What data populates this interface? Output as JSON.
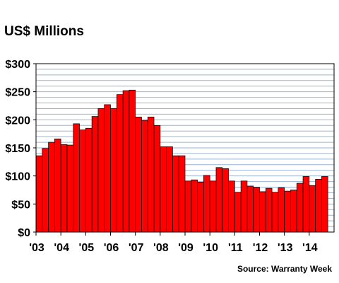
{
  "chart_data": {
    "type": "bar",
    "title": "US$ Millions",
    "source": "Source: Warranty Week",
    "ylim": [
      0,
      300
    ],
    "y_ticks": [
      {
        "value": 0,
        "label": "$0"
      },
      {
        "value": 50,
        "label": "$50"
      },
      {
        "value": 100,
        "label": "$100"
      },
      {
        "value": 150,
        "label": "$150"
      },
      {
        "value": 200,
        "label": "$200"
      },
      {
        "value": 250,
        "label": "$250"
      },
      {
        "value": 300,
        "label": "$300"
      }
    ],
    "y_gridline_step": 10,
    "grid": true,
    "x_tick_labels": [
      "'03",
      "'04",
      "'05",
      "'06",
      "'07",
      "'08",
      "'09",
      "'10",
      "'11",
      "'12",
      "'13",
      "'14"
    ],
    "periods_per_label": 4,
    "bar_color": "#ff0000",
    "grid_color": "#99b4d1",
    "values": [
      136,
      149,
      160,
      166,
      156,
      155,
      193,
      182,
      185,
      206,
      220,
      227,
      220,
      245,
      252,
      253,
      205,
      199,
      205,
      190,
      152,
      152,
      136,
      136,
      91,
      93,
      89,
      101,
      91,
      115,
      113,
      91,
      71,
      91,
      82,
      80,
      72,
      78,
      71,
      79,
      73,
      75,
      87,
      99,
      83,
      94,
      99
    ]
  }
}
